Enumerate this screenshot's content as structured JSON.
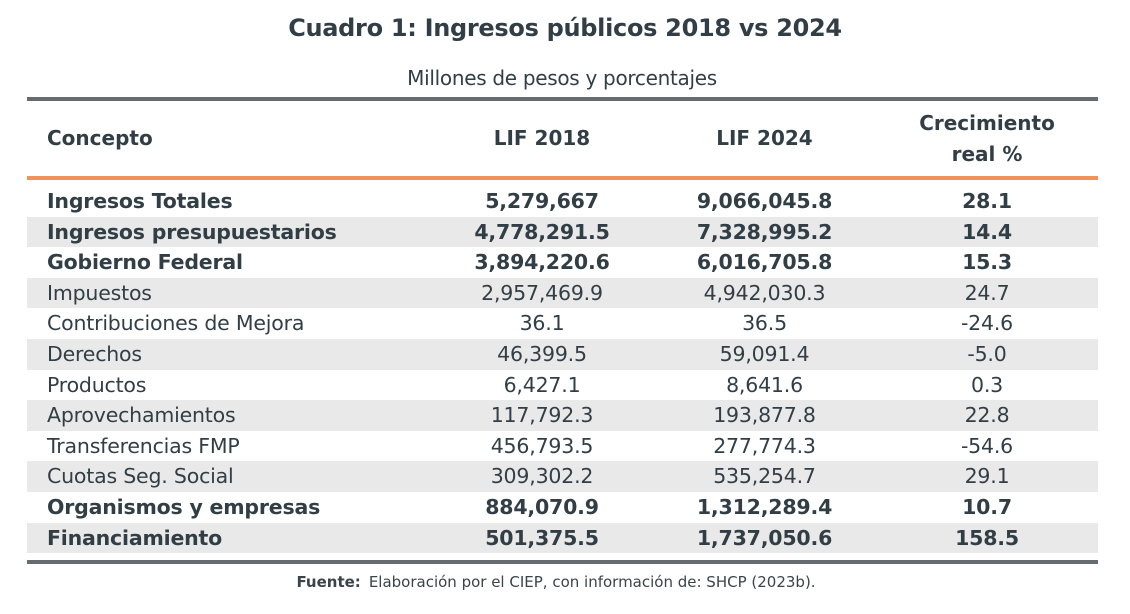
{
  "title": "Cuadro 1: Ingresos públicos 2018 vs 2024",
  "subtitle": "Millones de pesos y porcentajes",
  "headers": {
    "concepto": "Concepto",
    "lif2018": "LIF 2018",
    "lif2024": "LIF 2024",
    "crecimiento_1": "Crecimiento",
    "crecimiento_2": "real %"
  },
  "rows": [
    {
      "concepto": "Ingresos Totales",
      "lif2018": "5,279,667",
      "lif2024": "9,066,045.8",
      "crecimiento": "28.1",
      "bold": true
    },
    {
      "concepto": "Ingresos presupuestarios",
      "lif2018": "4,778,291.5",
      "lif2024": "7,328,995.2",
      "crecimiento": "14.4",
      "bold": true
    },
    {
      "concepto": "Gobierno Federal",
      "lif2018": "3,894,220.6",
      "lif2024": "6,016,705.8",
      "crecimiento": "15.3",
      "bold": true
    },
    {
      "concepto": "Impuestos",
      "lif2018": "2,957,469.9",
      "lif2024": "4,942,030.3",
      "crecimiento": "24.7",
      "bold": false
    },
    {
      "concepto": "Contribuciones de Mejora",
      "lif2018": "36.1",
      "lif2024": "36.5",
      "crecimiento": "-24.6",
      "bold": false
    },
    {
      "concepto": "Derechos",
      "lif2018": "46,399.5",
      "lif2024": "59,091.4",
      "crecimiento": "-5.0",
      "bold": false
    },
    {
      "concepto": "Productos",
      "lif2018": "6,427.1",
      "lif2024": "8,641.6",
      "crecimiento": "0.3",
      "bold": false
    },
    {
      "concepto": "Aprovechamientos",
      "lif2018": "117,792.3",
      "lif2024": "193,877.8",
      "crecimiento": "22.8",
      "bold": false
    },
    {
      "concepto": "Transferencias FMP",
      "lif2018": "456,793.5",
      "lif2024": "277,774.3",
      "crecimiento": "-54.6",
      "bold": false
    },
    {
      "concepto": "Cuotas Seg. Social",
      "lif2018": "309,302.2",
      "lif2024": "535,254.7",
      "crecimiento": "29.1",
      "bold": false
    },
    {
      "concepto": "Organismos y empresas",
      "lif2018": "884,070.9",
      "lif2024": "1,312,289.4",
      "crecimiento": "10.7",
      "bold": true
    },
    {
      "concepto": "Financiamiento",
      "lif2018": "501,375.5",
      "lif2024": "1,737,050.6",
      "crecimiento": "158.5",
      "bold": true
    }
  ],
  "source": {
    "label": "Fuente:",
    "text": "Elaboración por el CIEP, con información de: SHCP (2023b)."
  },
  "colors": {
    "rule": "#656b6f",
    "accent": "#f0935a",
    "stripe": "#e9e9e9",
    "text": "#323e46"
  }
}
